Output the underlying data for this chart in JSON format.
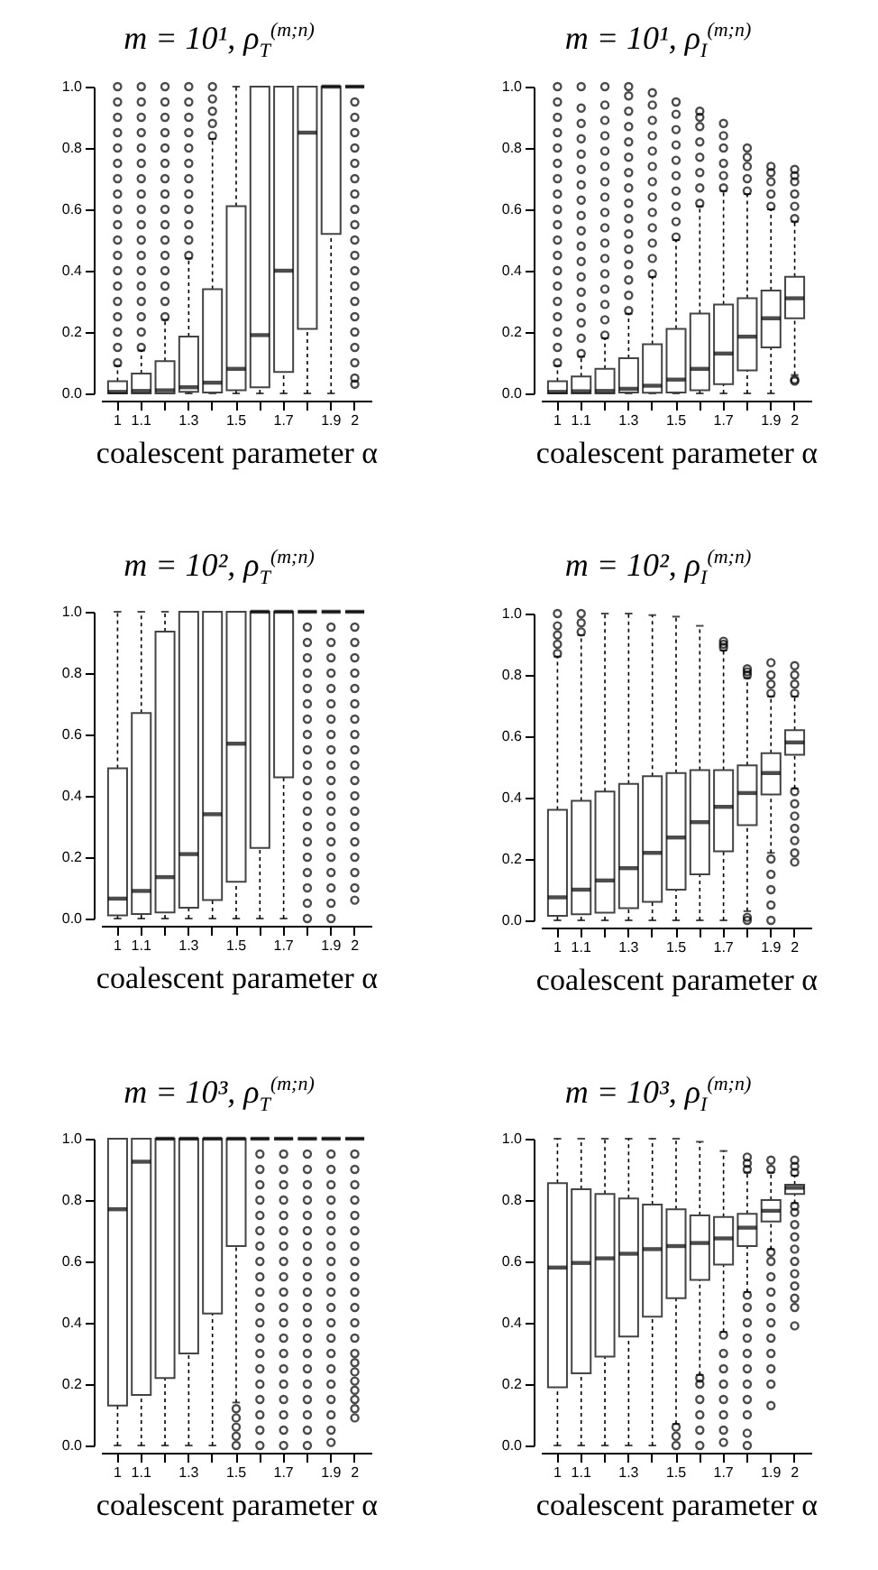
{
  "chart_data": [
    {
      "type": "box",
      "title": "m = 10¹, ρ$_{T}$$^{(m;n)}$",
      "xlabel": "coalescent parameter α",
      "categories": [
        "1",
        "1.1",
        null,
        "1.3",
        null,
        "1.5",
        null,
        "1.7",
        null,
        "1.9",
        "2"
      ],
      "ylim": [
        0,
        1
      ],
      "yticks": [
        {
          "value": 0,
          "label": "0.0"
        },
        {
          "value": 0.2,
          "label": "0.2"
        },
        {
          "value": 0.4,
          "label": "0.4"
        },
        {
          "value": 0.6,
          "label": "0.6"
        },
        {
          "value": 0.8,
          "label": "0.8"
        },
        {
          "value": 1,
          "label": "1.0"
        }
      ],
      "boxes": [
        {
          "low": 0,
          "q1": 0,
          "median": 0.005,
          "q3": 0.04,
          "high": 0.09,
          "outliers": [
            0.1,
            0.15,
            0.2,
            0.25,
            0.3,
            0.35,
            0.4,
            0.45,
            0.5,
            0.55,
            0.6,
            0.65,
            0.7,
            0.75,
            0.8,
            0.85,
            0.9,
            0.95,
            1.0
          ]
        },
        {
          "low": 0,
          "q1": 0,
          "median": 0.008,
          "q3": 0.065,
          "high": 0.14,
          "outliers": [
            0.15,
            0.2,
            0.25,
            0.3,
            0.35,
            0.4,
            0.45,
            0.5,
            0.55,
            0.6,
            0.65,
            0.7,
            0.75,
            0.8,
            0.85,
            0.9,
            0.95,
            1.0
          ]
        },
        {
          "low": 0,
          "q1": 0,
          "median": 0.01,
          "q3": 0.105,
          "high": 0.24,
          "outliers": [
            0.25,
            0.3,
            0.35,
            0.4,
            0.45,
            0.5,
            0.55,
            0.6,
            0.65,
            0.7,
            0.75,
            0.8,
            0.85,
            0.9,
            0.95,
            1.0
          ]
        },
        {
          "low": 0,
          "q1": 0.005,
          "median": 0.02,
          "q3": 0.185,
          "high": 0.44,
          "outliers": [
            0.45,
            0.5,
            0.55,
            0.6,
            0.65,
            0.7,
            0.75,
            0.8,
            0.85,
            0.9,
            0.95,
            1.0
          ]
        },
        {
          "low": 0,
          "q1": 0.003,
          "median": 0.035,
          "q3": 0.34,
          "high": 0.83,
          "outliers": [
            0.84,
            0.88,
            0.92,
            0.96,
            1.0
          ]
        },
        {
          "low": 0,
          "q1": 0.01,
          "median": 0.08,
          "q3": 0.61,
          "high": 1.0
        },
        {
          "low": 0,
          "q1": 0.02,
          "median": 0.19,
          "q3": 1.0,
          "high": 1.0
        },
        {
          "low": 0,
          "q1": 0.07,
          "median": 0.4,
          "q3": 1.0,
          "high": 1.0
        },
        {
          "low": 0,
          "q1": 0.21,
          "median": 0.85,
          "q3": 1.0,
          "high": 1.0
        },
        {
          "low": 0,
          "q1": 0.52,
          "median": 1.0,
          "q3": 1.0,
          "high": 1.0
        },
        {
          "low": 1.0,
          "q1": 1.0,
          "median": 1.0,
          "q3": 1.0,
          "high": 1.0,
          "outliers": [
            0.03,
            0.05,
            0.1,
            0.15,
            0.2,
            0.25,
            0.3,
            0.35,
            0.4,
            0.45,
            0.5,
            0.55,
            0.6,
            0.65,
            0.7,
            0.75,
            0.8,
            0.85,
            0.9,
            0.95
          ]
        }
      ]
    },
    {
      "type": "box",
      "title": "m = 10¹, ρ$_{I}$$^{(m;n)}$",
      "xlabel": "coalescent parameter α",
      "categories": [
        "1",
        "1.1",
        null,
        "1.3",
        null,
        "1.5",
        null,
        "1.7",
        null,
        "1.9",
        "2"
      ],
      "ylim": [
        0,
        1
      ],
      "yticks": [
        {
          "value": 0,
          "label": "0.0"
        },
        {
          "value": 0.2,
          "label": "0.2"
        },
        {
          "value": 0.4,
          "label": "0.4"
        },
        {
          "value": 0.6,
          "label": "0.6"
        },
        {
          "value": 0.8,
          "label": "0.8"
        },
        {
          "value": 1,
          "label": "1.0"
        }
      ],
      "boxes": [
        {
          "low": 0,
          "q1": 0,
          "median": 0.005,
          "q3": 0.04,
          "high": 0.09,
          "outliers": [
            0.1,
            0.15,
            0.2,
            0.25,
            0.3,
            0.35,
            0.4,
            0.45,
            0.5,
            0.55,
            0.6,
            0.65,
            0.7,
            0.75,
            0.8,
            0.85,
            0.9,
            0.95,
            1.0
          ]
        },
        {
          "low": 0,
          "q1": 0,
          "median": 0.007,
          "q3": 0.055,
          "high": 0.12,
          "outliers": [
            0.13,
            0.18,
            0.23,
            0.28,
            0.33,
            0.38,
            0.43,
            0.48,
            0.53,
            0.58,
            0.63,
            0.68,
            0.73,
            0.78,
            0.83,
            0.88,
            0.93,
            1.0
          ]
        },
        {
          "low": 0,
          "q1": 0,
          "median": 0.008,
          "q3": 0.08,
          "high": 0.18,
          "outliers": [
            0.19,
            0.24,
            0.29,
            0.34,
            0.39,
            0.44,
            0.49,
            0.54,
            0.59,
            0.64,
            0.69,
            0.74,
            0.79,
            0.84,
            0.89,
            0.94,
            1.0
          ]
        },
        {
          "low": 0,
          "q1": 0.003,
          "median": 0.015,
          "q3": 0.115,
          "high": 0.26,
          "outliers": [
            0.27,
            0.32,
            0.37,
            0.42,
            0.47,
            0.52,
            0.57,
            0.62,
            0.67,
            0.72,
            0.77,
            0.82,
            0.87,
            0.92,
            0.97,
            1.0
          ]
        },
        {
          "low": 0,
          "q1": 0.002,
          "median": 0.025,
          "q3": 0.16,
          "high": 0.38,
          "outliers": [
            0.39,
            0.44,
            0.49,
            0.54,
            0.59,
            0.64,
            0.69,
            0.74,
            0.79,
            0.84,
            0.89,
            0.94,
            0.98
          ]
        },
        {
          "low": 0,
          "q1": 0.003,
          "median": 0.045,
          "q3": 0.21,
          "high": 0.5,
          "outliers": [
            0.51,
            0.56,
            0.61,
            0.66,
            0.71,
            0.76,
            0.81,
            0.86,
            0.91,
            0.95
          ]
        },
        {
          "low": 0,
          "q1": 0.01,
          "median": 0.08,
          "q3": 0.26,
          "high": 0.61,
          "outliers": [
            0.62,
            0.67,
            0.72,
            0.77,
            0.82,
            0.87,
            0.9,
            0.92
          ]
        },
        {
          "low": 0,
          "q1": 0.03,
          "median": 0.13,
          "q3": 0.29,
          "high": 0.66,
          "outliers": [
            0.67,
            0.71,
            0.75,
            0.8,
            0.84,
            0.88
          ]
        },
        {
          "low": 0,
          "q1": 0.075,
          "median": 0.185,
          "q3": 0.31,
          "high": 0.65,
          "outliers": [
            0.66,
            0.7,
            0.74,
            0.77,
            0.8
          ]
        },
        {
          "low": 0,
          "q1": 0.15,
          "median": 0.245,
          "q3": 0.335,
          "high": 0.6,
          "outliers": [
            0.61,
            0.65,
            0.69,
            0.72,
            0.74
          ]
        },
        {
          "low": 0.06,
          "q1": 0.245,
          "median": 0.31,
          "q3": 0.38,
          "high": 0.56,
          "outliers": [
            0.04,
            0.045,
            0.57,
            0.61,
            0.65,
            0.69,
            0.71,
            0.73
          ]
        }
      ]
    },
    {
      "type": "box",
      "title": "m = 10², ρ$_{T}$$^{(m;n)}$",
      "xlabel": "coalescent parameter α",
      "categories": [
        "1",
        "1.1",
        null,
        "1.3",
        null,
        "1.5",
        null,
        "1.7",
        null,
        "1.9",
        "2"
      ],
      "ylim": [
        0,
        1
      ],
      "yticks": [
        {
          "value": 0,
          "label": "0.0"
        },
        {
          "value": 0.2,
          "label": "0.2"
        },
        {
          "value": 0.4,
          "label": "0.4"
        },
        {
          "value": 0.6,
          "label": "0.6"
        },
        {
          "value": 0.8,
          "label": "0.8"
        },
        {
          "value": 1,
          "label": "1.0"
        }
      ],
      "boxes": [
        {
          "low": 0,
          "q1": 0.01,
          "median": 0.065,
          "q3": 0.49,
          "high": 1.0
        },
        {
          "low": 0,
          "q1": 0.015,
          "median": 0.09,
          "q3": 0.67,
          "high": 1.0
        },
        {
          "low": 0,
          "q1": 0.02,
          "median": 0.135,
          "q3": 0.935,
          "high": 1.0
        },
        {
          "low": 0,
          "q1": 0.035,
          "median": 0.21,
          "q3": 1.0,
          "high": 1.0
        },
        {
          "low": 0,
          "q1": 0.06,
          "median": 0.34,
          "q3": 1.0,
          "high": 1.0
        },
        {
          "low": 0,
          "q1": 0.12,
          "median": 0.57,
          "q3": 1.0,
          "high": 1.0
        },
        {
          "low": 0,
          "q1": 0.23,
          "median": 1.0,
          "q3": 1.0,
          "high": 1.0
        },
        {
          "low": 0,
          "q1": 0.46,
          "median": 1.0,
          "q3": 1.0,
          "high": 1.0
        },
        {
          "low": 1.0,
          "q1": 1.0,
          "median": 1.0,
          "q3": 1.0,
          "high": 1.0,
          "outliers": [
            0,
            0.05,
            0.1,
            0.15,
            0.2,
            0.25,
            0.3,
            0.35,
            0.4,
            0.45,
            0.5,
            0.55,
            0.6,
            0.65,
            0.7,
            0.75,
            0.8,
            0.85,
            0.9,
            0.95
          ]
        },
        {
          "low": 1.0,
          "q1": 1.0,
          "median": 1.0,
          "q3": 1.0,
          "high": 1.0,
          "outliers": [
            0,
            0.05,
            0.1,
            0.15,
            0.2,
            0.25,
            0.3,
            0.35,
            0.4,
            0.45,
            0.5,
            0.55,
            0.6,
            0.65,
            0.7,
            0.75,
            0.8,
            0.85,
            0.9,
            0.95
          ]
        },
        {
          "low": 1.0,
          "q1": 1.0,
          "median": 1.0,
          "q3": 1.0,
          "high": 1.0,
          "outliers": [
            0.06,
            0.1,
            0.15,
            0.2,
            0.25,
            0.3,
            0.35,
            0.4,
            0.45,
            0.5,
            0.55,
            0.6,
            0.65,
            0.7,
            0.75,
            0.8,
            0.85,
            0.9,
            0.95
          ]
        }
      ]
    },
    {
      "type": "box",
      "title": "m = 10², ρ$_{I}$$^{(m;n)}$",
      "xlabel": "coalescent parameter α",
      "categories": [
        "1",
        "1.1",
        null,
        "1.3",
        null,
        "1.5",
        null,
        "1.7",
        null,
        "1.9",
        "2"
      ],
      "ylim": [
        0,
        1
      ],
      "yticks": [
        {
          "value": 0,
          "label": "0.0"
        },
        {
          "value": 0.2,
          "label": "0.2"
        },
        {
          "value": 0.4,
          "label": "0.4"
        },
        {
          "value": 0.6,
          "label": "0.6"
        },
        {
          "value": 0.8,
          "label": "0.8"
        },
        {
          "value": 1,
          "label": "1.0"
        }
      ],
      "boxes": [
        {
          "low": 0,
          "q1": 0.015,
          "median": 0.075,
          "q3": 0.36,
          "high": 0.86,
          "outliers": [
            0.87,
            0.9,
            0.93,
            0.96,
            1.0
          ]
        },
        {
          "low": 0,
          "q1": 0.02,
          "median": 0.1,
          "q3": 0.39,
          "high": 0.93,
          "outliers": [
            0.94,
            0.97,
            1.0
          ]
        },
        {
          "low": 0,
          "q1": 0.025,
          "median": 0.13,
          "q3": 0.42,
          "high": 1.0
        },
        {
          "low": 0,
          "q1": 0.04,
          "median": 0.17,
          "q3": 0.445,
          "high": 1.0
        },
        {
          "low": 0,
          "q1": 0.06,
          "median": 0.22,
          "q3": 0.47,
          "high": 0.995
        },
        {
          "low": 0,
          "q1": 0.1,
          "median": 0.27,
          "q3": 0.48,
          "high": 0.99
        },
        {
          "low": 0,
          "q1": 0.15,
          "median": 0.32,
          "q3": 0.49,
          "high": 0.96
        },
        {
          "low": 0,
          "q1": 0.225,
          "median": 0.37,
          "q3": 0.49,
          "high": 0.88,
          "outliers": [
            0.89,
            0.9,
            0.91
          ]
        },
        {
          "low": 0.03,
          "q1": 0.31,
          "median": 0.415,
          "q3": 0.505,
          "high": 0.79,
          "outliers": [
            0,
            0.01,
            0.8,
            0.81,
            0.82
          ]
        },
        {
          "low": 0.22,
          "q1": 0.41,
          "median": 0.48,
          "q3": 0.545,
          "high": 0.73,
          "outliers": [
            0,
            0.05,
            0.1,
            0.15,
            0.2,
            0.74,
            0.77,
            0.8,
            0.84
          ]
        },
        {
          "low": 0.43,
          "q1": 0.54,
          "median": 0.58,
          "q3": 0.62,
          "high": 0.73,
          "outliers": [
            0.19,
            0.22,
            0.26,
            0.3,
            0.34,
            0.38,
            0.42,
            0.74,
            0.77,
            0.8,
            0.83
          ]
        }
      ]
    },
    {
      "type": "box",
      "title": "m = 10³, ρ$_{T}$$^{(m;n)}$",
      "xlabel": "coalescent parameter α",
      "categories": [
        "1",
        "1.1",
        null,
        "1.3",
        null,
        "1.5",
        null,
        "1.7",
        null,
        "1.9",
        "2"
      ],
      "ylim": [
        0,
        1
      ],
      "yticks": [
        {
          "value": 0,
          "label": "0.0"
        },
        {
          "value": 0.2,
          "label": "0.2"
        },
        {
          "value": 0.4,
          "label": "0.4"
        },
        {
          "value": 0.6,
          "label": "0.6"
        },
        {
          "value": 0.8,
          "label": "0.8"
        },
        {
          "value": 1,
          "label": "1.0"
        }
      ],
      "boxes": [
        {
          "low": 0,
          "q1": 0.13,
          "median": 0.77,
          "q3": 1.0,
          "high": 1.0
        },
        {
          "low": 0,
          "q1": 0.165,
          "median": 0.925,
          "q3": 1.0,
          "high": 1.0
        },
        {
          "low": 0,
          "q1": 0.22,
          "median": 1.0,
          "q3": 1.0,
          "high": 1.0
        },
        {
          "low": 0,
          "q1": 0.3,
          "median": 1.0,
          "q3": 1.0,
          "high": 1.0
        },
        {
          "low": 0,
          "q1": 0.43,
          "median": 1.0,
          "q3": 1.0,
          "high": 1.0
        },
        {
          "low": 0.14,
          "q1": 0.65,
          "median": 1.0,
          "q3": 1.0,
          "high": 1.0,
          "outliers": [
            0,
            0.03,
            0.06,
            0.09,
            0.12
          ]
        },
        {
          "low": 1.0,
          "q1": 1.0,
          "median": 1.0,
          "q3": 1.0,
          "high": 1.0,
          "outliers": [
            0,
            0.05,
            0.1,
            0.15,
            0.2,
            0.25,
            0.3,
            0.35,
            0.4,
            0.45,
            0.5,
            0.55,
            0.6,
            0.65,
            0.7,
            0.75,
            0.8,
            0.85,
            0.9,
            0.95
          ]
        },
        {
          "low": 1.0,
          "q1": 1.0,
          "median": 1.0,
          "q3": 1.0,
          "high": 1.0,
          "outliers": [
            0,
            0.05,
            0.1,
            0.15,
            0.2,
            0.25,
            0.3,
            0.35,
            0.4,
            0.45,
            0.5,
            0.55,
            0.6,
            0.65,
            0.7,
            0.75,
            0.8,
            0.85,
            0.9,
            0.95
          ]
        },
        {
          "low": 1.0,
          "q1": 1.0,
          "median": 1.0,
          "q3": 1.0,
          "high": 1.0,
          "outliers": [
            0,
            0.05,
            0.1,
            0.15,
            0.2,
            0.25,
            0.3,
            0.35,
            0.4,
            0.45,
            0.5,
            0.55,
            0.6,
            0.65,
            0.7,
            0.75,
            0.8,
            0.85,
            0.9,
            0.95
          ]
        },
        {
          "low": 1.0,
          "q1": 1.0,
          "median": 1.0,
          "q3": 1.0,
          "high": 1.0,
          "outliers": [
            0.01,
            0.05,
            0.1,
            0.15,
            0.2,
            0.25,
            0.3,
            0.35,
            0.4,
            0.45,
            0.5,
            0.55,
            0.6,
            0.65,
            0.7,
            0.75,
            0.8,
            0.85,
            0.9,
            0.95
          ]
        },
        {
          "low": 1.0,
          "q1": 1.0,
          "median": 1.0,
          "q3": 1.0,
          "high": 1.0,
          "outliers": [
            0.09,
            0.12,
            0.15,
            0.18,
            0.21,
            0.24,
            0.27,
            0.3,
            0.35,
            0.4,
            0.45,
            0.5,
            0.55,
            0.6,
            0.65,
            0.7,
            0.75,
            0.8,
            0.85,
            0.9,
            0.95
          ]
        }
      ]
    },
    {
      "type": "box",
      "title": "m = 10³, ρ$_{I}$$^{(m;n)}$",
      "xlabel": "coalescent parameter α",
      "categories": [
        "1",
        "1.1",
        null,
        "1.3",
        null,
        "1.5",
        null,
        "1.7",
        null,
        "1.9",
        "2"
      ],
      "ylim": [
        0,
        1
      ],
      "yticks": [
        {
          "value": 0,
          "label": "0.0"
        },
        {
          "value": 0.2,
          "label": "0.2"
        },
        {
          "value": 0.4,
          "label": "0.4"
        },
        {
          "value": 0.6,
          "label": "0.6"
        },
        {
          "value": 0.8,
          "label": "0.8"
        },
        {
          "value": 1,
          "label": "1.0"
        }
      ],
      "boxes": [
        {
          "low": 0,
          "q1": 0.19,
          "median": 0.58,
          "q3": 0.855,
          "high": 1.0
        },
        {
          "low": 0,
          "q1": 0.235,
          "median": 0.595,
          "q3": 0.835,
          "high": 1.0
        },
        {
          "low": 0,
          "q1": 0.29,
          "median": 0.61,
          "q3": 0.82,
          "high": 1.0
        },
        {
          "low": 0,
          "q1": 0.355,
          "median": 0.625,
          "q3": 0.805,
          "high": 1.0
        },
        {
          "low": 0,
          "q1": 0.42,
          "median": 0.64,
          "q3": 0.785,
          "high": 1.0
        },
        {
          "low": 0.07,
          "q1": 0.48,
          "median": 0.65,
          "q3": 0.77,
          "high": 1.0,
          "outliers": [
            0,
            0.03,
            0.06
          ]
        },
        {
          "low": 0.23,
          "q1": 0.54,
          "median": 0.66,
          "q3": 0.75,
          "high": 0.99,
          "outliers": [
            0,
            0.05,
            0.1,
            0.15,
            0.2,
            0.22
          ]
        },
        {
          "low": 0.37,
          "q1": 0.59,
          "median": 0.675,
          "q3": 0.745,
          "high": 0.96,
          "outliers": [
            0.01,
            0.05,
            0.1,
            0.15,
            0.2,
            0.25,
            0.3,
            0.36
          ]
        },
        {
          "low": 0.5,
          "q1": 0.65,
          "median": 0.71,
          "q3": 0.755,
          "high": 0.89,
          "outliers": [
            0,
            0.04,
            0.1,
            0.15,
            0.2,
            0.25,
            0.3,
            0.35,
            0.4,
            0.45,
            0.49,
            0.9,
            0.92,
            0.94
          ]
        },
        {
          "low": 0.64,
          "q1": 0.73,
          "median": 0.765,
          "q3": 0.8,
          "high": 0.89,
          "outliers": [
            0.13,
            0.2,
            0.25,
            0.3,
            0.35,
            0.4,
            0.45,
            0.5,
            0.55,
            0.6,
            0.63,
            0.9,
            0.93
          ]
        },
        {
          "low": 0.79,
          "q1": 0.82,
          "median": 0.84,
          "q3": 0.85,
          "high": 0.88,
          "outliers": [
            0.39,
            0.45,
            0.48,
            0.52,
            0.56,
            0.6,
            0.64,
            0.68,
            0.72,
            0.76,
            0.78,
            0.89,
            0.91,
            0.93
          ]
        }
      ]
    }
  ]
}
